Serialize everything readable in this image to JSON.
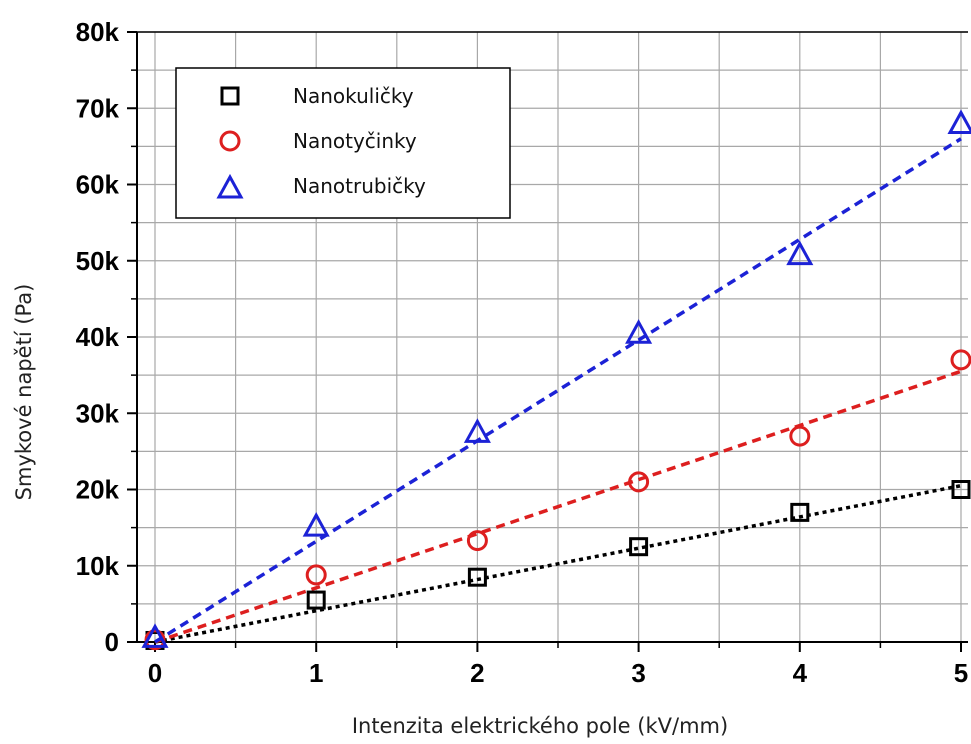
{
  "chart_data": {
    "type": "scatter",
    "xlabel": "Intenzita elektrického pole (kV/mm)",
    "ylabel": "Smykové napětí (Pa)",
    "xlim": [
      -0.1,
      5.05
    ],
    "ylim": [
      0,
      80000
    ],
    "x_ticks": [
      0,
      1,
      2,
      3,
      4,
      5
    ],
    "x_tick_labels": [
      "0",
      "1",
      "2",
      "3",
      "4",
      "5"
    ],
    "y_ticks": [
      0,
      10000,
      20000,
      30000,
      40000,
      50000,
      60000,
      70000,
      80000
    ],
    "y_tick_labels": [
      "0",
      "10k",
      "20k",
      "30k",
      "40k",
      "50k",
      "60k",
      "70k",
      "80k"
    ],
    "grid": true,
    "legend_position": "top-left",
    "series": [
      {
        "name": "Nanokuličky",
        "marker": "square",
        "color": "#000000",
        "x": [
          0,
          1,
          2,
          3,
          4,
          5
        ],
        "y": [
          200,
          5500,
          8500,
          12500,
          17000,
          20000
        ],
        "fit_line": {
          "x": [
            0,
            5
          ],
          "y": [
            0,
            20500
          ],
          "style": "dotted"
        }
      },
      {
        "name": "Nanotyčinky",
        "marker": "circle",
        "color": "#dd1f1f",
        "x": [
          0,
          1,
          2,
          3,
          4,
          5
        ],
        "y": [
          300,
          8800,
          13300,
          21000,
          27000,
          37000
        ],
        "fit_line": {
          "x": [
            0,
            5
          ],
          "y": [
            0,
            35500
          ],
          "style": "dashed"
        }
      },
      {
        "name": "Nanotrubičky",
        "marker": "triangle",
        "color": "#1c22d6",
        "x": [
          0,
          1,
          2,
          3,
          4,
          5
        ],
        "y": [
          600,
          15200,
          27500,
          40500,
          50800,
          68000
        ],
        "fit_line": {
          "x": [
            0,
            5
          ],
          "y": [
            0,
            66000
          ],
          "style": "dashed"
        }
      }
    ]
  }
}
